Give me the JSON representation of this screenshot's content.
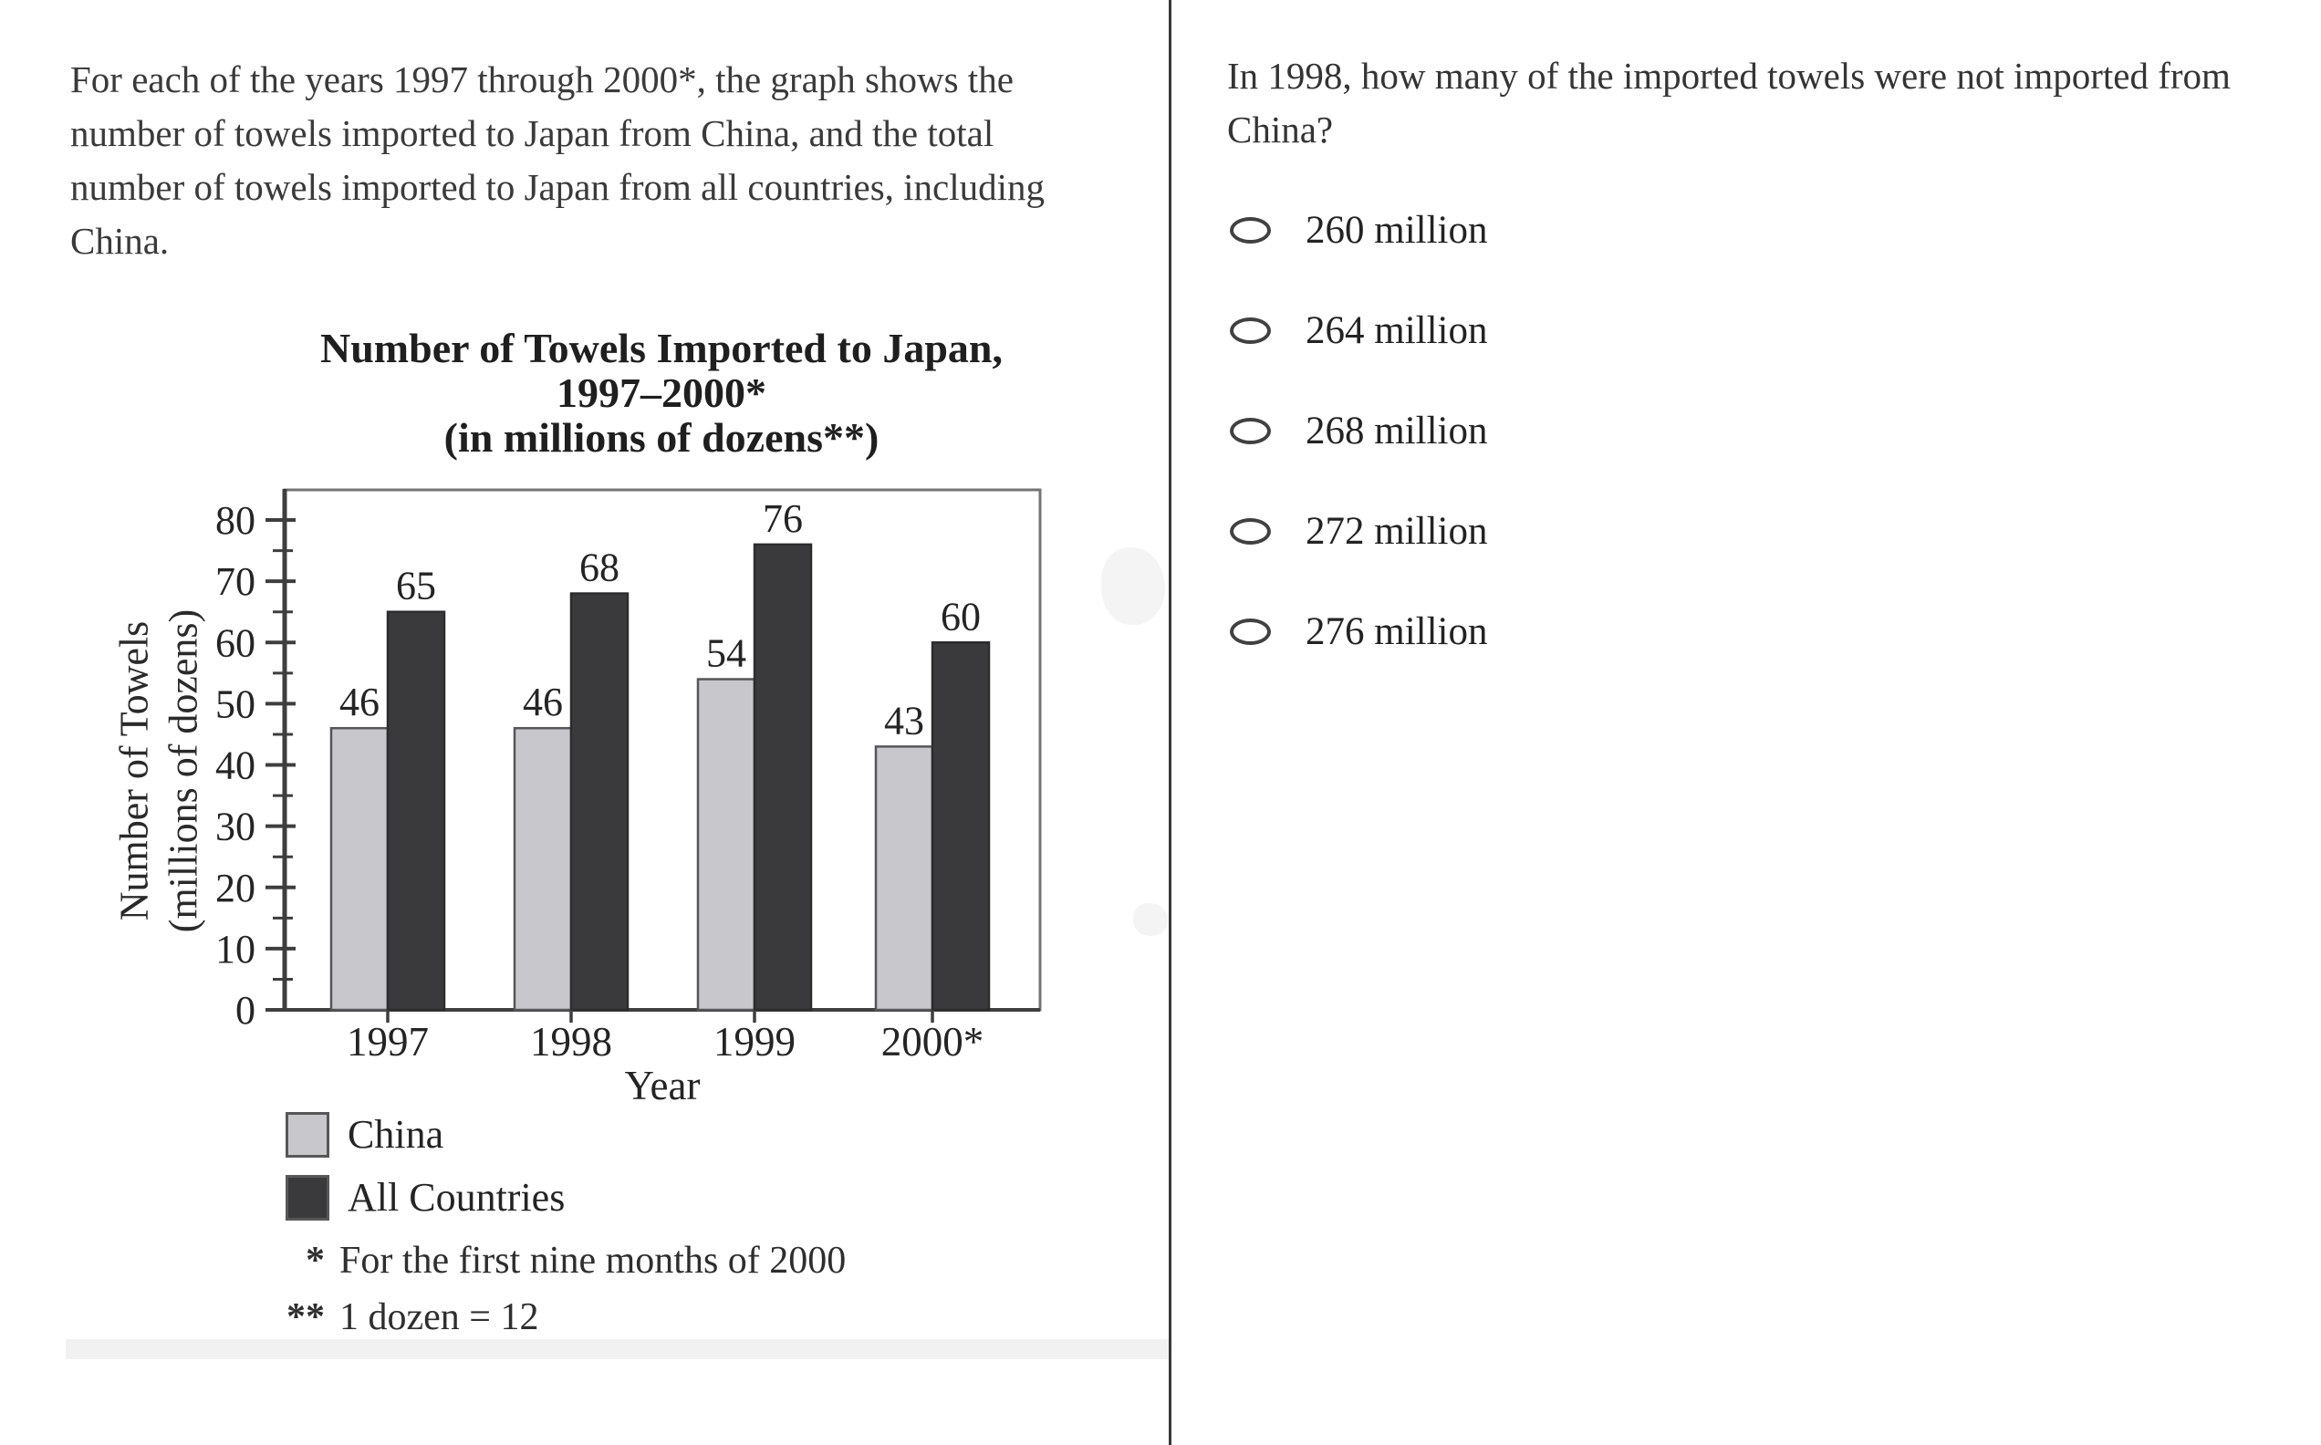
{
  "intro": {
    "lines": [
      "For each of the years 1997 through 2000*, the graph shows the",
      "number of towels imported to Japan from China, and the total",
      "number of towels imported to Japan from all countries, including",
      "China."
    ]
  },
  "figure": {
    "title_lines": [
      "Number of Towels Imported to Japan,",
      "1997–2000*",
      "(in millions of dozens**)"
    ],
    "y_axis_label_lines": [
      "Number of Towels",
      "(millions of dozens)"
    ],
    "footnotes": [
      {
        "marker": "*",
        "text": "For the first nine months of 2000"
      },
      {
        "marker": "**",
        "text": "1 dozen = 12"
      }
    ]
  },
  "chart_data": {
    "type": "bar",
    "title": "Number of Towels Imported to Japan, 1997–2000* (in millions of dozens**)",
    "categories": [
      "1997",
      "1998",
      "1999",
      "2000*"
    ],
    "series": [
      {
        "name": "China",
        "values": [
          46,
          46,
          54,
          43
        ],
        "color": "#c8c8cc",
        "edge": "#55555a"
      },
      {
        "name": "All Countries",
        "values": [
          65,
          68,
          76,
          60
        ],
        "color": "#3a3a3c",
        "edge": "#2c2c2e"
      }
    ],
    "xlabel": "Year",
    "ylabel": "Number of Towels (millions of dozens)",
    "ylim": [
      0,
      80
    ],
    "yticks": [
      0,
      10,
      20,
      30,
      40,
      50,
      60,
      70,
      80
    ],
    "ytick_minor_step": 5,
    "grid": false,
    "bar_value_labels": true,
    "legend_position": "bottom-left"
  },
  "question": {
    "lines": [
      "In 1998, how many of the imported towels were not imported from",
      "China?"
    ],
    "options": [
      {
        "label": "260 million",
        "selected": false
      },
      {
        "label": "264 million",
        "selected": false
      },
      {
        "label": "268 million",
        "selected": false
      },
      {
        "label": "272 million",
        "selected": false
      },
      {
        "label": "276 million",
        "selected": false
      }
    ]
  },
  "colors": {
    "page_background": "#ffffff",
    "divider": "#3a3a3a",
    "text": "#333333",
    "china_bar": "#c8c8cc",
    "all_countries_bar": "#3a3a3c",
    "frame": "#757575",
    "axis": "#3e3e3e",
    "band": "#f1f1f1"
  }
}
